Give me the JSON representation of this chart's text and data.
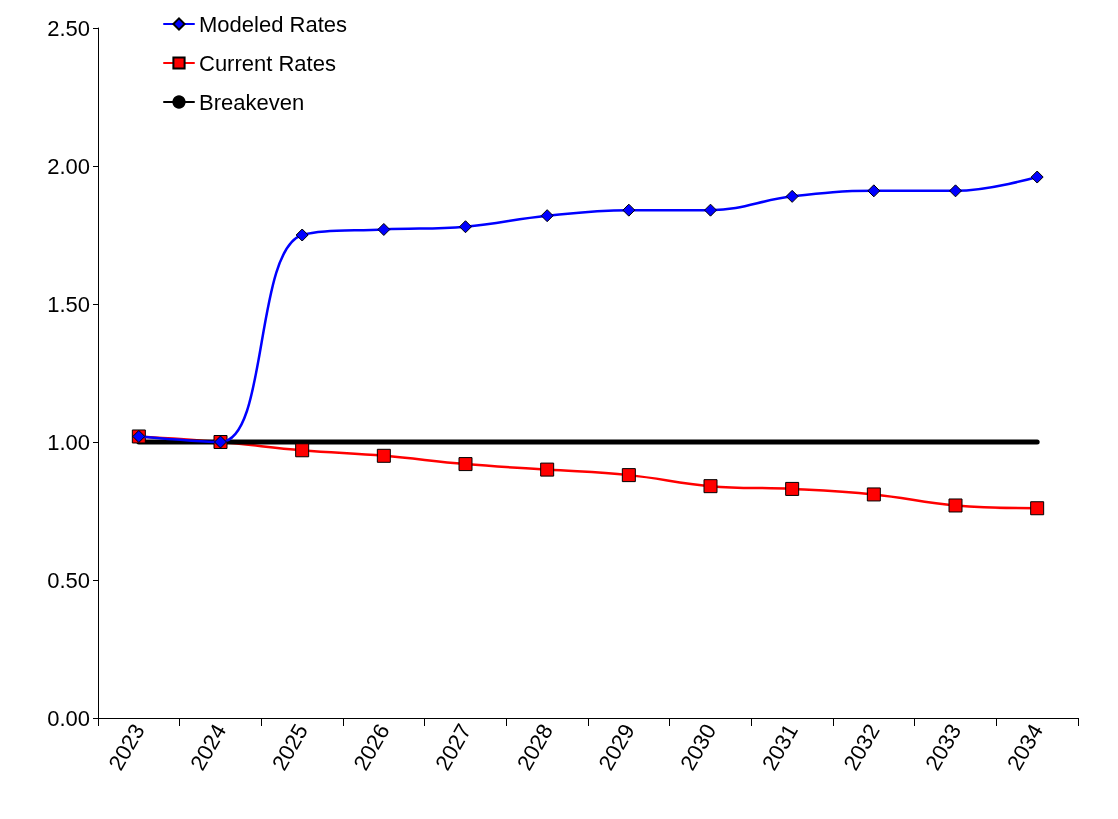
{
  "chart_data": {
    "type": "line",
    "categories": [
      "2023",
      "2024",
      "2025",
      "2026",
      "2027",
      "2028",
      "2029",
      "2030",
      "2031",
      "2032",
      "2033",
      "2034"
    ],
    "series": [
      {
        "name": "Modeled Rates",
        "color": "#0000ff",
        "marker": "diamond",
        "values": [
          1.02,
          1.0,
          1.75,
          1.77,
          1.78,
          1.82,
          1.84,
          1.84,
          1.89,
          1.91,
          1.91,
          1.96
        ]
      },
      {
        "name": "Current Rates",
        "color": "#ff0000",
        "marker": "square",
        "values": [
          1.02,
          1.0,
          0.97,
          0.95,
          0.92,
          0.9,
          0.88,
          0.84,
          0.83,
          0.81,
          0.77,
          0.76
        ]
      },
      {
        "name": "Breakeven",
        "color": "#000000",
        "marker": "none",
        "values": [
          1,
          1,
          1,
          1,
          1,
          1,
          1,
          1,
          1,
          1,
          1,
          1
        ]
      }
    ],
    "ylim": [
      0,
      2.5
    ],
    "yticks": [
      {
        "value": 0,
        "label": "0.00"
      },
      {
        "value": 0.5,
        "label": "0.50"
      },
      {
        "value": 1,
        "label": "1.00"
      },
      {
        "value": 1.5,
        "label": "1.50"
      },
      {
        "value": 2,
        "label": "2.00"
      },
      {
        "value": 2.5,
        "label": "2.50"
      }
    ],
    "grid": false,
    "legend": "top left",
    "line_style": "solid"
  }
}
